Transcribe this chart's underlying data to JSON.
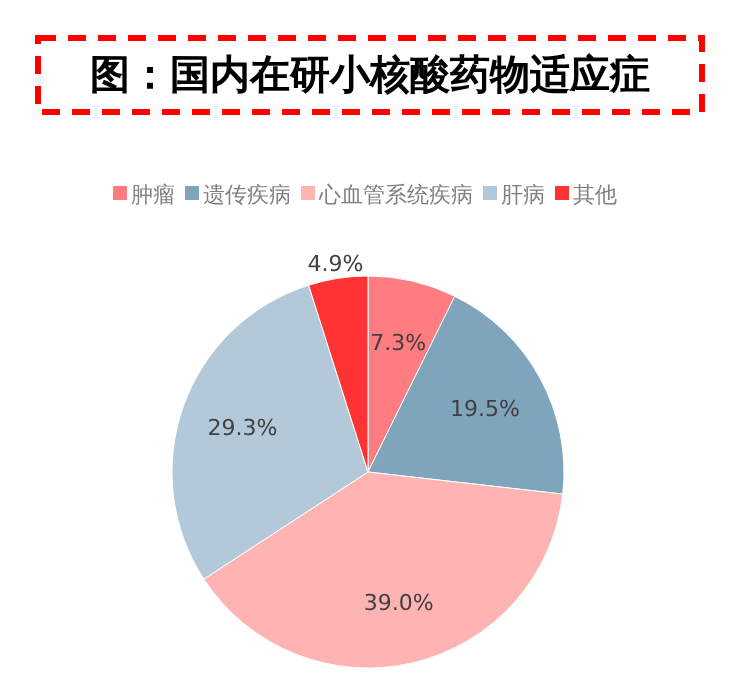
{
  "chart_data": {
    "type": "pie",
    "title": "图：国内在研小核酸药物适应症",
    "categories": [
      "肿瘤",
      "遗传疾病",
      "心血管系统疾病",
      "肝病",
      "其他"
    ],
    "values": [
      7.3,
      19.5,
      39.0,
      29.3,
      4.9
    ],
    "colors": [
      "#ff7c80",
      "#7fa5bd",
      "#ffb3b3",
      "#b3c8d8",
      "#ff3333"
    ],
    "value_labels": [
      "7.3%",
      "19.5%",
      "39.0%",
      "29.3%",
      "4.9%"
    ],
    "legend": "top"
  }
}
